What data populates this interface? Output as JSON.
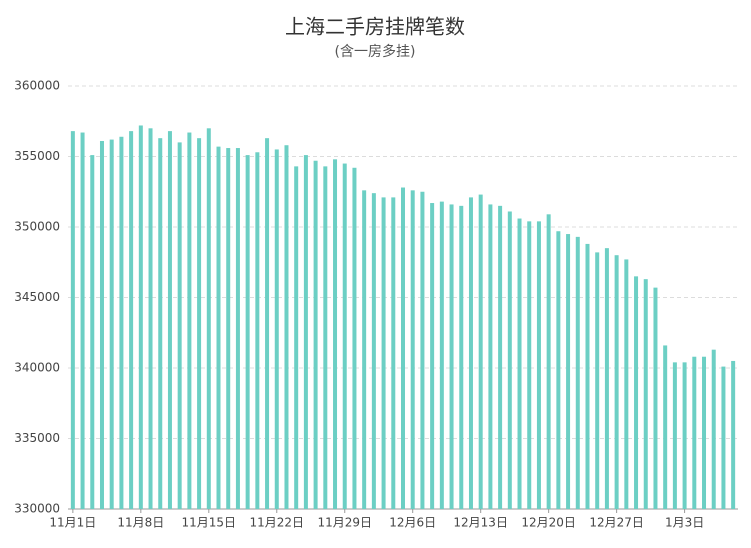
{
  "chart_data": {
    "type": "bar",
    "title": "上海二手房挂牌笔数",
    "subtitle": "(含一房多挂)",
    "categories": [
      "11月1日",
      null,
      null,
      null,
      null,
      null,
      null,
      "11月8日",
      null,
      null,
      null,
      null,
      null,
      null,
      "11月15日",
      null,
      null,
      null,
      null,
      null,
      null,
      "11月22日",
      null,
      null,
      null,
      null,
      null,
      null,
      "11月29日",
      null,
      null,
      null,
      null,
      null,
      null,
      "12月6日",
      null,
      null,
      null,
      null,
      null,
      null,
      "12月13日",
      null,
      null,
      null,
      null,
      null,
      null,
      "12月20日",
      null,
      null,
      null,
      null,
      null,
      null,
      "12月27日",
      null,
      null,
      null,
      null,
      null,
      null,
      "1月3日",
      null,
      null,
      null,
      null,
      null
    ],
    "values": [
      356800,
      356700,
      355100,
      356100,
      356200,
      356400,
      356800,
      357200,
      357000,
      356300,
      356800,
      356000,
      356700,
      356300,
      357000,
      355700,
      355600,
      355600,
      355100,
      355300,
      356300,
      355500,
      355800,
      354300,
      355100,
      354700,
      354300,
      354800,
      354500,
      354200,
      352600,
      352400,
      352100,
      352100,
      352800,
      352600,
      352500,
      351700,
      351800,
      351600,
      351500,
      352100,
      352300,
      351600,
      351500,
      351100,
      350600,
      350400,
      350400,
      350900,
      349700,
      349500,
      349300,
      348800,
      348200,
      348500,
      348000,
      347700,
      346500,
      346300,
      345700,
      341600,
      340400,
      340400,
      340800,
      340800,
      341300,
      340100,
      340500
    ],
    "color": "#6ccfc4",
    "ylim": [
      330000,
      360000
    ],
    "yticks": [
      330000,
      335000,
      340000,
      345000,
      350000,
      355000,
      360000
    ],
    "grid": true
  }
}
